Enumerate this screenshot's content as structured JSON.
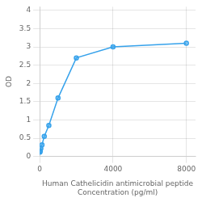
{
  "chart_data": {
    "type": "line",
    "x": [
      15.625,
      31.25,
      62.5,
      125,
      250,
      500,
      1000,
      2000,
      4000,
      8000
    ],
    "values": [
      0.12,
      0.15,
      0.22,
      0.32,
      0.55,
      0.85,
      1.6,
      2.7,
      3.0,
      3.1
    ],
    "xlabel": "Human Cathelicidin antimicrobial peptide\nConcentration (pg/ml)",
    "ylabel": "OD",
    "xlim": [
      0,
      8500
    ],
    "xticks": [
      0,
      4000,
      8000
    ],
    "ylim": [
      0,
      4.1
    ],
    "yticks": [
      0,
      0.5,
      1,
      1.5,
      2,
      2.5,
      3,
      3.5,
      4
    ],
    "grid": true,
    "marker": "circle"
  }
}
